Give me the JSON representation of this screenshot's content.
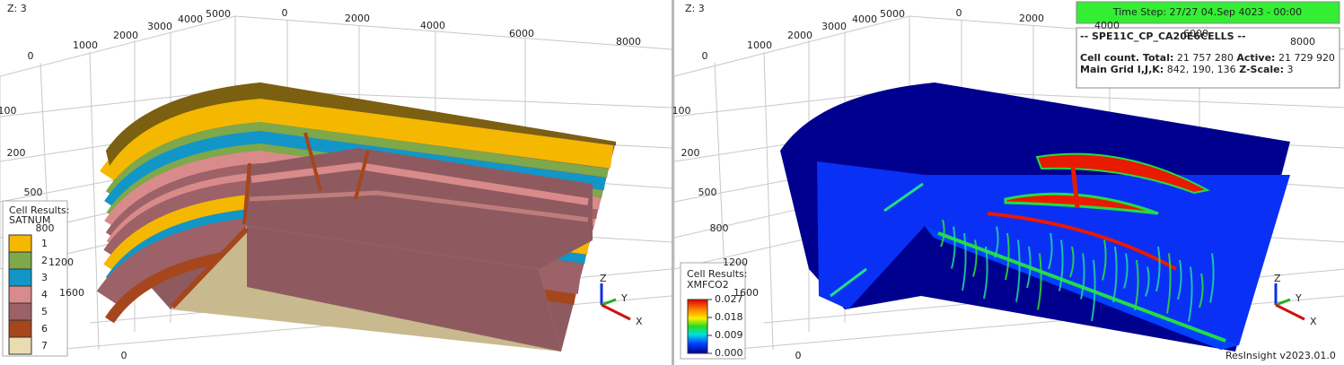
{
  "left_view": {
    "z_label": "Z: 3",
    "axis_labels": [
      "5000",
      "4000",
      "3000",
      "2000",
      "1000",
      "0",
      "0",
      "2000",
      "4000",
      "6000",
      "8000",
      "100",
      "200",
      "500",
      "800",
      "1200",
      "1600",
      "0"
    ],
    "axis_triad": [
      "Z",
      "Y",
      "X"
    ],
    "legend": {
      "title": "Cell Results:",
      "result": "SATNUM",
      "items": [
        {
          "label": "1",
          "color": "#f5b800"
        },
        {
          "label": "2",
          "color": "#7ea84a"
        },
        {
          "label": "3",
          "color": "#1296c8"
        },
        {
          "label": "4",
          "color": "#d98a8a"
        },
        {
          "label": "5",
          "color": "#9c6268"
        },
        {
          "label": "6",
          "color": "#a5461d"
        },
        {
          "label": "7",
          "color": "#e8dcb0"
        }
      ]
    }
  },
  "right_view": {
    "z_label": "Z: 3",
    "axis_labels": [
      "5000",
      "4000",
      "3000",
      "2000",
      "1000",
      "0",
      "0",
      "2000",
      "4000",
      "6000",
      "8000",
      "100",
      "200",
      "500",
      "800",
      "1200",
      "1600",
      "0"
    ],
    "axis_triad": [
      "Z",
      "Y",
      "X"
    ],
    "time_step": "Time Step: 27/27 04.Sep 4023 - 00:00",
    "info": {
      "case": "-- SPE11C_CP_CA20E6CELLS --",
      "cell_count_label": "Cell count. Total:",
      "total": "21 757 280",
      "active_label": "Active:",
      "active": "21 729 920",
      "grid_label": "Main Grid I,J,K:",
      "grid": "842, 190, 136",
      "zscale_label": "Z-Scale:",
      "zscale": "3"
    },
    "legend": {
      "title": "Cell Results:",
      "result": "XMFCO2",
      "ticks": [
        "0.027",
        "0.018",
        "0.009",
        "0.000"
      ]
    }
  },
  "version": "ResInsight v2023.01.0"
}
